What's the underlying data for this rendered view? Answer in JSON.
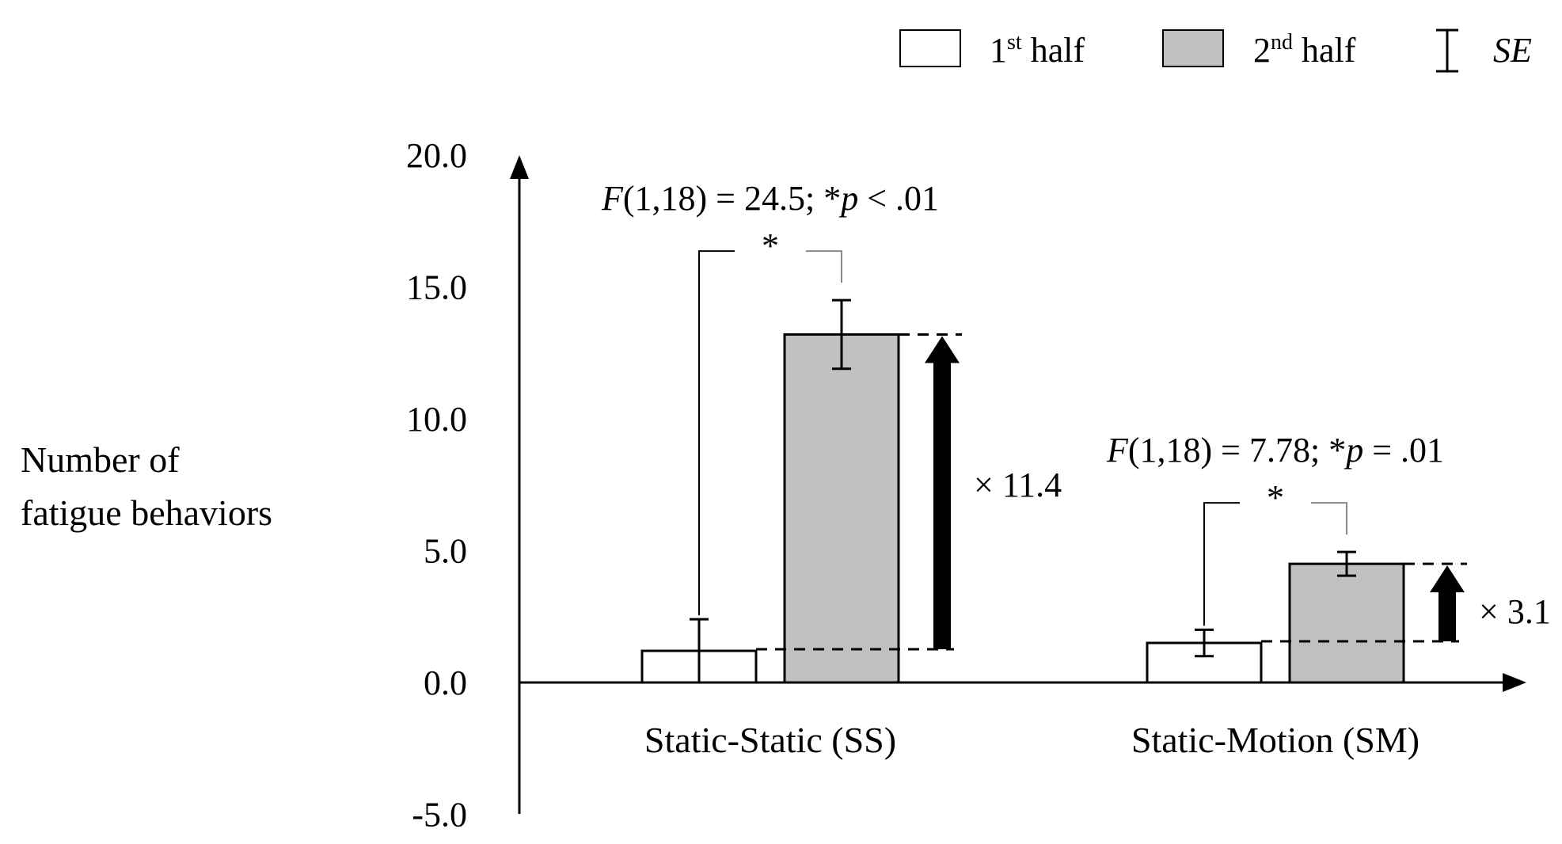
{
  "chart_data": {
    "type": "bar",
    "ylabel": [
      "Number of",
      "fatigue behaviors"
    ],
    "ylim": [
      -5,
      20
    ],
    "yticks": [
      20,
      15,
      10,
      5,
      0,
      -5
    ],
    "ytick_labels": [
      "20.0",
      "15.0",
      "10.0",
      "5.0",
      "0.0",
      "-5.0"
    ],
    "categories": [
      "Static-Static (SS)",
      "Static-Motion (SM)"
    ],
    "series": [
      {
        "name": "1st half",
        "values": [
          1.2,
          1.5
        ],
        "se": [
          1.2,
          0.5
        ],
        "color": "#ffffff"
      },
      {
        "name": "2nd half",
        "values": [
          13.2,
          4.5
        ],
        "se": [
          1.3,
          0.45
        ],
        "color": "#c0c0c0"
      }
    ],
    "legend": {
      "position": "top-right",
      "items": [
        {
          "base": "1",
          "sup": "st",
          "rest": " half"
        },
        {
          "base": "2",
          "sup": "nd",
          "rest": " half"
        },
        {
          "base": "",
          "sup": "",
          "rest": "SE"
        }
      ]
    },
    "annotations": [
      {
        "category": 0,
        "stat_italic": "F",
        "stat_a": "(1,18) = 24.5; *",
        "stat_italic2": "p",
        "stat_b": " < .01",
        "star": "*",
        "ratio": "× 11.4"
      },
      {
        "category": 1,
        "stat_italic": "F",
        "stat_a": "(1,18) = 7.78; *",
        "stat_italic2": "p",
        "stat_b": " = .01",
        "star": "*",
        "ratio": "× 3.1"
      }
    ]
  }
}
